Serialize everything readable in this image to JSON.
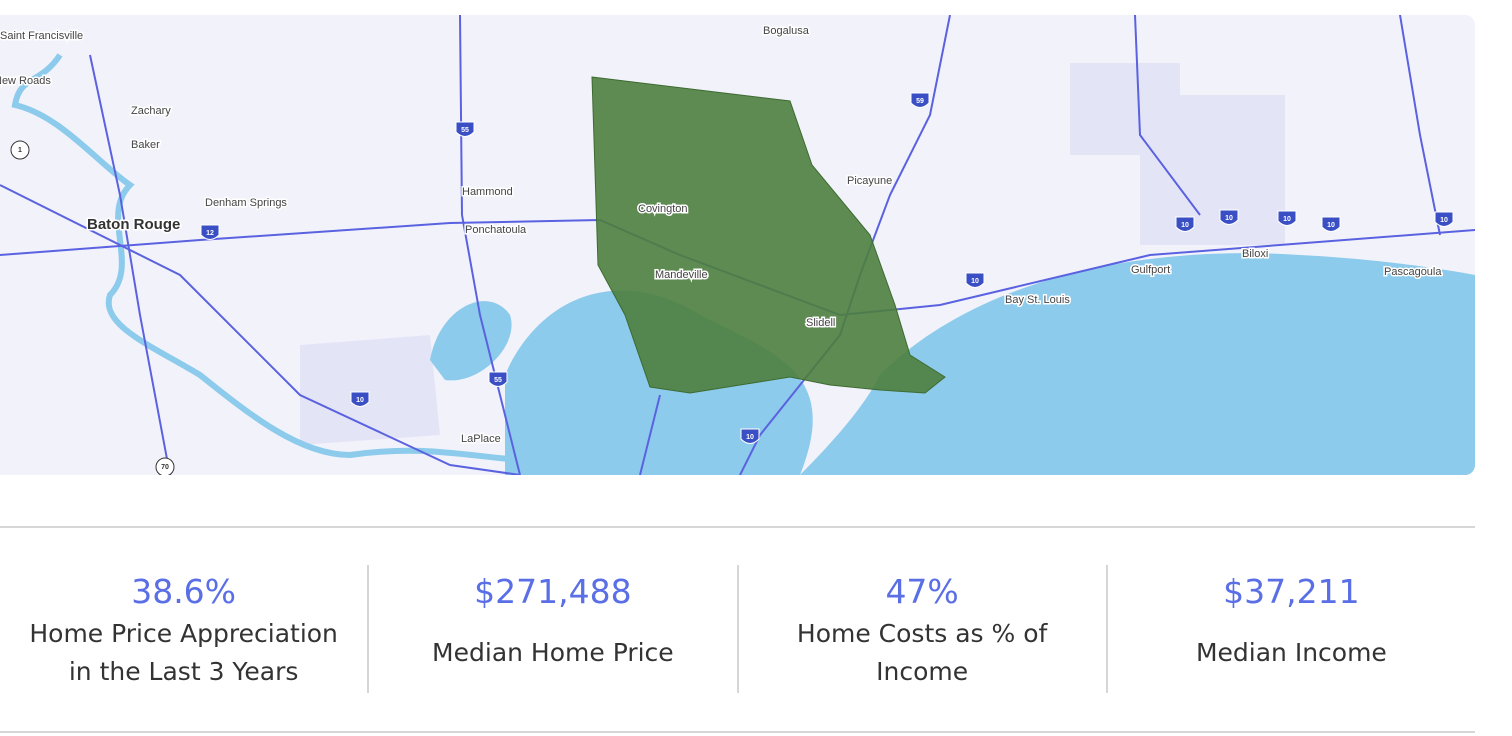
{
  "map": {
    "places": [
      "Saint Francisville",
      "New Roads",
      "Zachary",
      "Baker",
      "Denham Springs",
      "Baton Rouge",
      "Hammond",
      "Ponchatoula",
      "Covington",
      "Mandeville",
      "Slidell",
      "Picayune",
      "Bogalusa",
      "LaPlace",
      "Bay St. Louis",
      "Gulfport",
      "Biloxi",
      "Pascagoula"
    ],
    "shields": [
      "55",
      "59",
      "12",
      "10",
      "55",
      "10",
      "10",
      "10",
      "10",
      "10",
      "10",
      "10",
      "1",
      "70"
    ]
  },
  "stats": [
    {
      "value": "38.6%",
      "label": "Home Price Appreciation in the Last 3 Years"
    },
    {
      "value": "$271,488",
      "label": "Median Home Price"
    },
    {
      "value": "47%",
      "label": "Home Costs as % of Income"
    },
    {
      "value": "$37,211",
      "label": "Median Income"
    }
  ]
}
